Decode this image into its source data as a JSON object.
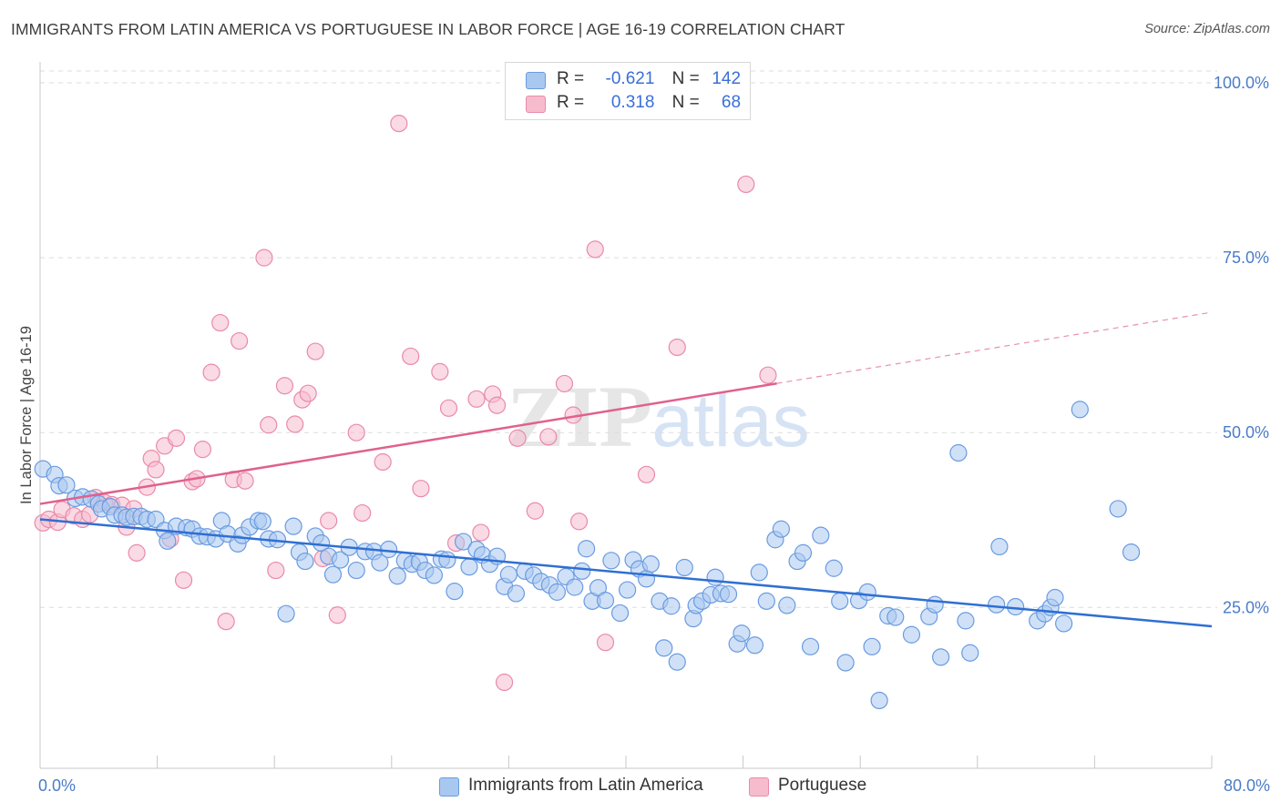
{
  "title": "IMMIGRANTS FROM LATIN AMERICA VS PORTUGUESE IN LABOR FORCE | AGE 16-19 CORRELATION CHART",
  "source": "Source: ZipAtlas.com",
  "watermark": {
    "zip": "ZIP",
    "atlas": "atlas"
  },
  "colors": {
    "blue_fill": "#a9c8f0",
    "blue_stroke": "#6a9be0",
    "blue_line": "#2f6fd3",
    "pink_fill": "#f6bccd",
    "pink_stroke": "#ea8aa8",
    "pink_line": "#e0608e",
    "axis_text": "#4a7cc7",
    "grid": "#dcdcdc"
  },
  "legend": {
    "rows": [
      {
        "r_label": "R =",
        "r_value": "-0.621",
        "n_label": "N =",
        "n_value": "142"
      },
      {
        "r_label": "R =",
        "r_value": "0.318",
        "n_label": "N =",
        "n_value": "68"
      }
    ]
  },
  "chart_data": {
    "type": "scatter",
    "title": "IMMIGRANTS FROM LATIN AMERICA VS PORTUGUESE IN LABOR FORCE | AGE 16-19 CORRELATION CHART",
    "xlabel": "",
    "ylabel": "In Labor Force | Age 16-19",
    "xlim": [
      0,
      80
    ],
    "ylim": [
      2,
      103
    ],
    "x_tick_labels": [
      "0.0%",
      "80.0%"
    ],
    "y_ticks": [
      25,
      50,
      75,
      100
    ],
    "y_tick_labels": [
      "25.0%",
      "50.0%",
      "75.0%",
      "100.0%"
    ],
    "grid": true,
    "legend_position": "top-center",
    "series": [
      {
        "name": "Immigrants from Latin America",
        "color": "#6a9be0",
        "trend": {
          "x": [
            0,
            80
          ],
          "y": [
            37.6,
            22.3
          ],
          "solid_until_x": 80
        },
        "points": [
          [
            0.2,
            44.8
          ],
          [
            1.0,
            44.0
          ],
          [
            1.3,
            42.4
          ],
          [
            1.8,
            42.5
          ],
          [
            2.4,
            40.6
          ],
          [
            2.9,
            40.8
          ],
          [
            3.5,
            40.5
          ],
          [
            4.0,
            39.8
          ],
          [
            4.2,
            39.1
          ],
          [
            4.8,
            39.4
          ],
          [
            5.1,
            38.2
          ],
          [
            5.6,
            38.2
          ],
          [
            5.9,
            37.9
          ],
          [
            6.4,
            38.0
          ],
          [
            6.9,
            38.0
          ],
          [
            7.3,
            37.6
          ],
          [
            7.9,
            37.6
          ],
          [
            8.5,
            36.0
          ],
          [
            8.7,
            34.5
          ],
          [
            9.3,
            36.6
          ],
          [
            10.0,
            36.4
          ],
          [
            10.4,
            36.2
          ],
          [
            10.9,
            35.2
          ],
          [
            11.4,
            35.1
          ],
          [
            12.0,
            34.8
          ],
          [
            12.4,
            37.4
          ],
          [
            12.8,
            35.5
          ],
          [
            13.5,
            34.1
          ],
          [
            13.8,
            35.3
          ],
          [
            14.3,
            36.5
          ],
          [
            14.9,
            37.4
          ],
          [
            15.2,
            37.3
          ],
          [
            15.6,
            34.8
          ],
          [
            16.2,
            34.7
          ],
          [
            16.8,
            24.1
          ],
          [
            17.3,
            36.6
          ],
          [
            17.7,
            32.9
          ],
          [
            18.1,
            31.6
          ],
          [
            18.8,
            35.2
          ],
          [
            19.2,
            34.2
          ],
          [
            19.7,
            32.3
          ],
          [
            20.0,
            29.7
          ],
          [
            20.5,
            31.8
          ],
          [
            21.1,
            33.6
          ],
          [
            21.6,
            30.3
          ],
          [
            22.2,
            33.0
          ],
          [
            22.8,
            33.0
          ],
          [
            23.2,
            31.4
          ],
          [
            23.8,
            33.3
          ],
          [
            24.4,
            29.5
          ],
          [
            24.9,
            31.7
          ],
          [
            25.4,
            31.2
          ],
          [
            25.9,
            31.5
          ],
          [
            26.3,
            30.3
          ],
          [
            26.9,
            29.6
          ],
          [
            27.4,
            31.9
          ],
          [
            27.8,
            31.8
          ],
          [
            28.3,
            27.3
          ],
          [
            28.9,
            34.4
          ],
          [
            29.3,
            30.8
          ],
          [
            29.8,
            33.3
          ],
          [
            30.2,
            32.5
          ],
          [
            30.7,
            31.2
          ],
          [
            31.2,
            32.3
          ],
          [
            31.7,
            28.0
          ],
          [
            32.0,
            29.7
          ],
          [
            32.5,
            27.0
          ],
          [
            33.1,
            30.2
          ],
          [
            33.7,
            29.6
          ],
          [
            34.2,
            28.7
          ],
          [
            34.8,
            28.2
          ],
          [
            35.3,
            27.2
          ],
          [
            35.9,
            29.4
          ],
          [
            36.5,
            27.9
          ],
          [
            37.0,
            30.2
          ],
          [
            37.3,
            33.4
          ],
          [
            37.7,
            25.9
          ],
          [
            38.1,
            27.8
          ],
          [
            38.6,
            26.0
          ],
          [
            39.0,
            31.7
          ],
          [
            39.6,
            24.2
          ],
          [
            40.1,
            27.5
          ],
          [
            40.5,
            31.8
          ],
          [
            40.9,
            30.5
          ],
          [
            41.4,
            29.1
          ],
          [
            41.7,
            31.2
          ],
          [
            42.3,
            25.9
          ],
          [
            42.6,
            19.2
          ],
          [
            43.1,
            25.2
          ],
          [
            43.5,
            17.2
          ],
          [
            44.0,
            30.7
          ],
          [
            44.6,
            23.4
          ],
          [
            44.8,
            25.3
          ],
          [
            45.2,
            25.9
          ],
          [
            45.8,
            26.8
          ],
          [
            46.1,
            29.3
          ],
          [
            46.5,
            27.0
          ],
          [
            47.0,
            26.9
          ],
          [
            47.6,
            19.8
          ],
          [
            47.9,
            21.3
          ],
          [
            48.8,
            19.6
          ],
          [
            49.1,
            30.0
          ],
          [
            49.6,
            25.9
          ],
          [
            50.2,
            34.7
          ],
          [
            50.6,
            36.2
          ],
          [
            51.0,
            25.3
          ],
          [
            51.7,
            31.6
          ],
          [
            52.1,
            32.8
          ],
          [
            52.6,
            19.4
          ],
          [
            53.3,
            35.3
          ],
          [
            54.2,
            30.6
          ],
          [
            54.6,
            25.9
          ],
          [
            55.0,
            17.1
          ],
          [
            55.9,
            26.0
          ],
          [
            56.5,
            27.2
          ],
          [
            56.8,
            19.4
          ],
          [
            57.3,
            11.7
          ],
          [
            57.9,
            23.8
          ],
          [
            58.4,
            23.6
          ],
          [
            59.5,
            21.1
          ],
          [
            60.7,
            23.7
          ],
          [
            61.1,
            25.4
          ],
          [
            61.5,
            17.9
          ],
          [
            62.7,
            47.1
          ],
          [
            63.2,
            23.1
          ],
          [
            63.5,
            18.5
          ],
          [
            65.3,
            25.4
          ],
          [
            65.5,
            33.7
          ],
          [
            66.6,
            25.1
          ],
          [
            68.1,
            23.1
          ],
          [
            68.6,
            24.1
          ],
          [
            69.0,
            25.0
          ],
          [
            69.3,
            26.4
          ],
          [
            69.9,
            22.7
          ],
          [
            71.0,
            53.3
          ],
          [
            73.6,
            39.1
          ],
          [
            74.5,
            32.9
          ]
        ]
      },
      {
        "name": "Portuguese",
        "color": "#ea8aa8",
        "trend": {
          "x": [
            0,
            80
          ],
          "y": [
            39.8,
            67.2
          ],
          "solid_until_x": 50.3
        },
        "points": [
          [
            0.2,
            37.1
          ],
          [
            0.6,
            37.6
          ],
          [
            1.2,
            37.2
          ],
          [
            1.5,
            39.0
          ],
          [
            2.3,
            38.1
          ],
          [
            2.9,
            37.6
          ],
          [
            3.4,
            38.3
          ],
          [
            3.8,
            40.7
          ],
          [
            4.4,
            40.0
          ],
          [
            4.9,
            39.7
          ],
          [
            5.6,
            39.6
          ],
          [
            5.9,
            36.5
          ],
          [
            6.4,
            39.1
          ],
          [
            6.6,
            32.8
          ],
          [
            7.3,
            42.2
          ],
          [
            7.6,
            46.3
          ],
          [
            7.9,
            44.7
          ],
          [
            8.5,
            48.1
          ],
          [
            8.9,
            34.8
          ],
          [
            9.3,
            49.2
          ],
          [
            9.8,
            28.9
          ],
          [
            10.4,
            43.0
          ],
          [
            10.7,
            43.4
          ],
          [
            11.1,
            47.6
          ],
          [
            11.7,
            58.6
          ],
          [
            12.3,
            65.7
          ],
          [
            12.7,
            23.0
          ],
          [
            13.2,
            43.3
          ],
          [
            13.6,
            63.1
          ],
          [
            14.0,
            43.1
          ],
          [
            15.3,
            75.0
          ],
          [
            15.6,
            51.1
          ],
          [
            16.1,
            30.3
          ],
          [
            16.7,
            56.7
          ],
          [
            17.4,
            51.2
          ],
          [
            17.9,
            54.7
          ],
          [
            18.3,
            55.6
          ],
          [
            18.8,
            61.6
          ],
          [
            19.3,
            32.0
          ],
          [
            19.7,
            37.4
          ],
          [
            20.3,
            23.9
          ],
          [
            21.6,
            50.0
          ],
          [
            22.0,
            38.5
          ],
          [
            23.4,
            45.8
          ],
          [
            24.5,
            94.2
          ],
          [
            25.3,
            60.9
          ],
          [
            26.0,
            42.0
          ],
          [
            27.3,
            58.7
          ],
          [
            27.9,
            53.5
          ],
          [
            28.4,
            34.2
          ],
          [
            29.8,
            54.8
          ],
          [
            30.1,
            35.7
          ],
          [
            30.9,
            55.5
          ],
          [
            31.2,
            53.9
          ],
          [
            31.7,
            14.3
          ],
          [
            32.6,
            49.2
          ],
          [
            33.8,
            38.8
          ],
          [
            34.7,
            49.4
          ],
          [
            35.8,
            57.0
          ],
          [
            36.4,
            52.5
          ],
          [
            36.8,
            37.3
          ],
          [
            37.9,
            76.2
          ],
          [
            38.6,
            20.0
          ],
          [
            41.4,
            44.0
          ],
          [
            43.5,
            62.2
          ],
          [
            48.2,
            85.5
          ],
          [
            49.7,
            58.2
          ]
        ]
      }
    ]
  },
  "bottom_legend": [
    {
      "label": "Immigrants from Latin America"
    },
    {
      "label": "Portuguese"
    }
  ]
}
